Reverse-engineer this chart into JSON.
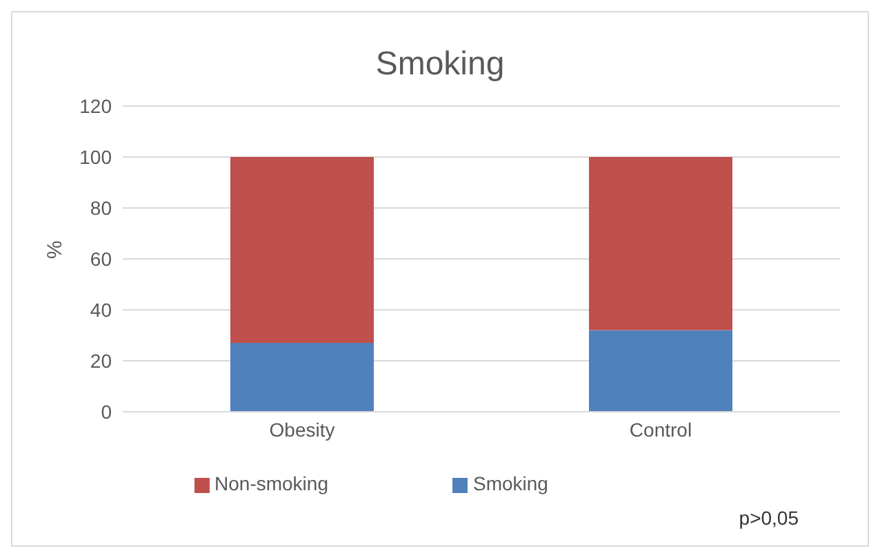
{
  "chart_data": {
    "type": "bar",
    "title": "Smoking",
    "ylabel": "%",
    "categories": [
      "Obesity",
      "Control"
    ],
    "stacked": true,
    "series": [
      {
        "name": "Smoking",
        "color": "#4f81bd",
        "values": [
          27,
          32
        ]
      },
      {
        "name": "Non-smoking",
        "color": "#c0504d",
        "values": [
          73,
          68
        ]
      }
    ],
    "ylim": [
      0,
      120
    ],
    "yticks": [
      0,
      20,
      40,
      60,
      80,
      100,
      120
    ],
    "grid": "y",
    "legend": "bottom",
    "annotations": [
      "p>0,05"
    ]
  }
}
